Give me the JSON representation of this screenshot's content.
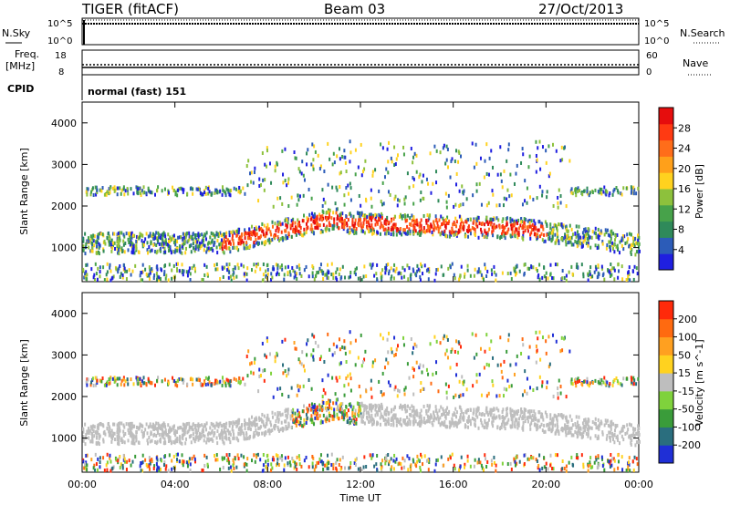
{
  "header": {
    "radar": "TIGER (fitACF)",
    "beam": "Beam 03",
    "date": "27/Oct/2013"
  },
  "top_panels": {
    "nsky_label": "N.Sky",
    "nsearch_label": "N.Search",
    "freq_label_1": "Freq.",
    "freq_label_2": "[MHz]",
    "nave_label": "Nave",
    "cpid_label": "CPID",
    "cpid_value": "normal (fast) 151",
    "nsky_ticks": [
      "10^5",
      "10^0"
    ],
    "nsearch_ticks": [
      "10^5",
      "10^0"
    ],
    "freq_ticks": [
      "18",
      "8"
    ],
    "nave_ticks": [
      "60",
      "0"
    ]
  },
  "chart_data": [
    {
      "type": "heatmap",
      "panel": "power",
      "ylabel": "Slant Range [km]",
      "xlabel": "Time UT",
      "x_ticks": [
        "00:00",
        "04:00",
        "08:00",
        "12:00",
        "16:00",
        "20:00",
        "00:00"
      ],
      "x_hours": [
        0,
        4,
        8,
        12,
        16,
        20,
        24
      ],
      "xlim": [
        0,
        24
      ],
      "ylim": [
        180,
        4500
      ],
      "y_ticks": [
        1000,
        2000,
        3000,
        4000
      ],
      "colorbar": {
        "label": "Power [dB]",
        "ticks": [
          4,
          8,
          12,
          16,
          20,
          24,
          28
        ],
        "range": [
          0,
          32
        ],
        "colors": [
          "#1f1fe0",
          "#2c5cb8",
          "#2f8a5a",
          "#47a24a",
          "#8dc13c",
          "#ffd21f",
          "#ffa01a",
          "#ff6d1a",
          "#ff3a12",
          "#e60d0d"
        ]
      }
    },
    {
      "type": "heatmap",
      "panel": "velocity",
      "ylabel": "Slant Range [km]",
      "xlabel": "Time UT",
      "x_ticks": [
        "00:00",
        "04:00",
        "08:00",
        "12:00",
        "16:00",
        "20:00",
        "00:00"
      ],
      "x_hours": [
        0,
        4,
        8,
        12,
        16,
        20,
        24
      ],
      "xlim": [
        0,
        24
      ],
      "ylim": [
        180,
        4500
      ],
      "y_ticks": [
        1000,
        2000,
        3000,
        4000
      ],
      "colorbar": {
        "label": "Velocity [m s^-1]",
        "ticks": [
          "200",
          "100",
          "50",
          "15",
          "-15",
          "-50",
          "-100",
          "-200"
        ],
        "colors": [
          "#1f2fd6",
          "#2a6e7e",
          "#3a9c3a",
          "#7fd23c",
          "#bebebe",
          "#ffd21f",
          "#ffa020",
          "#ff6a10",
          "#ff2a0a"
        ]
      }
    }
  ]
}
